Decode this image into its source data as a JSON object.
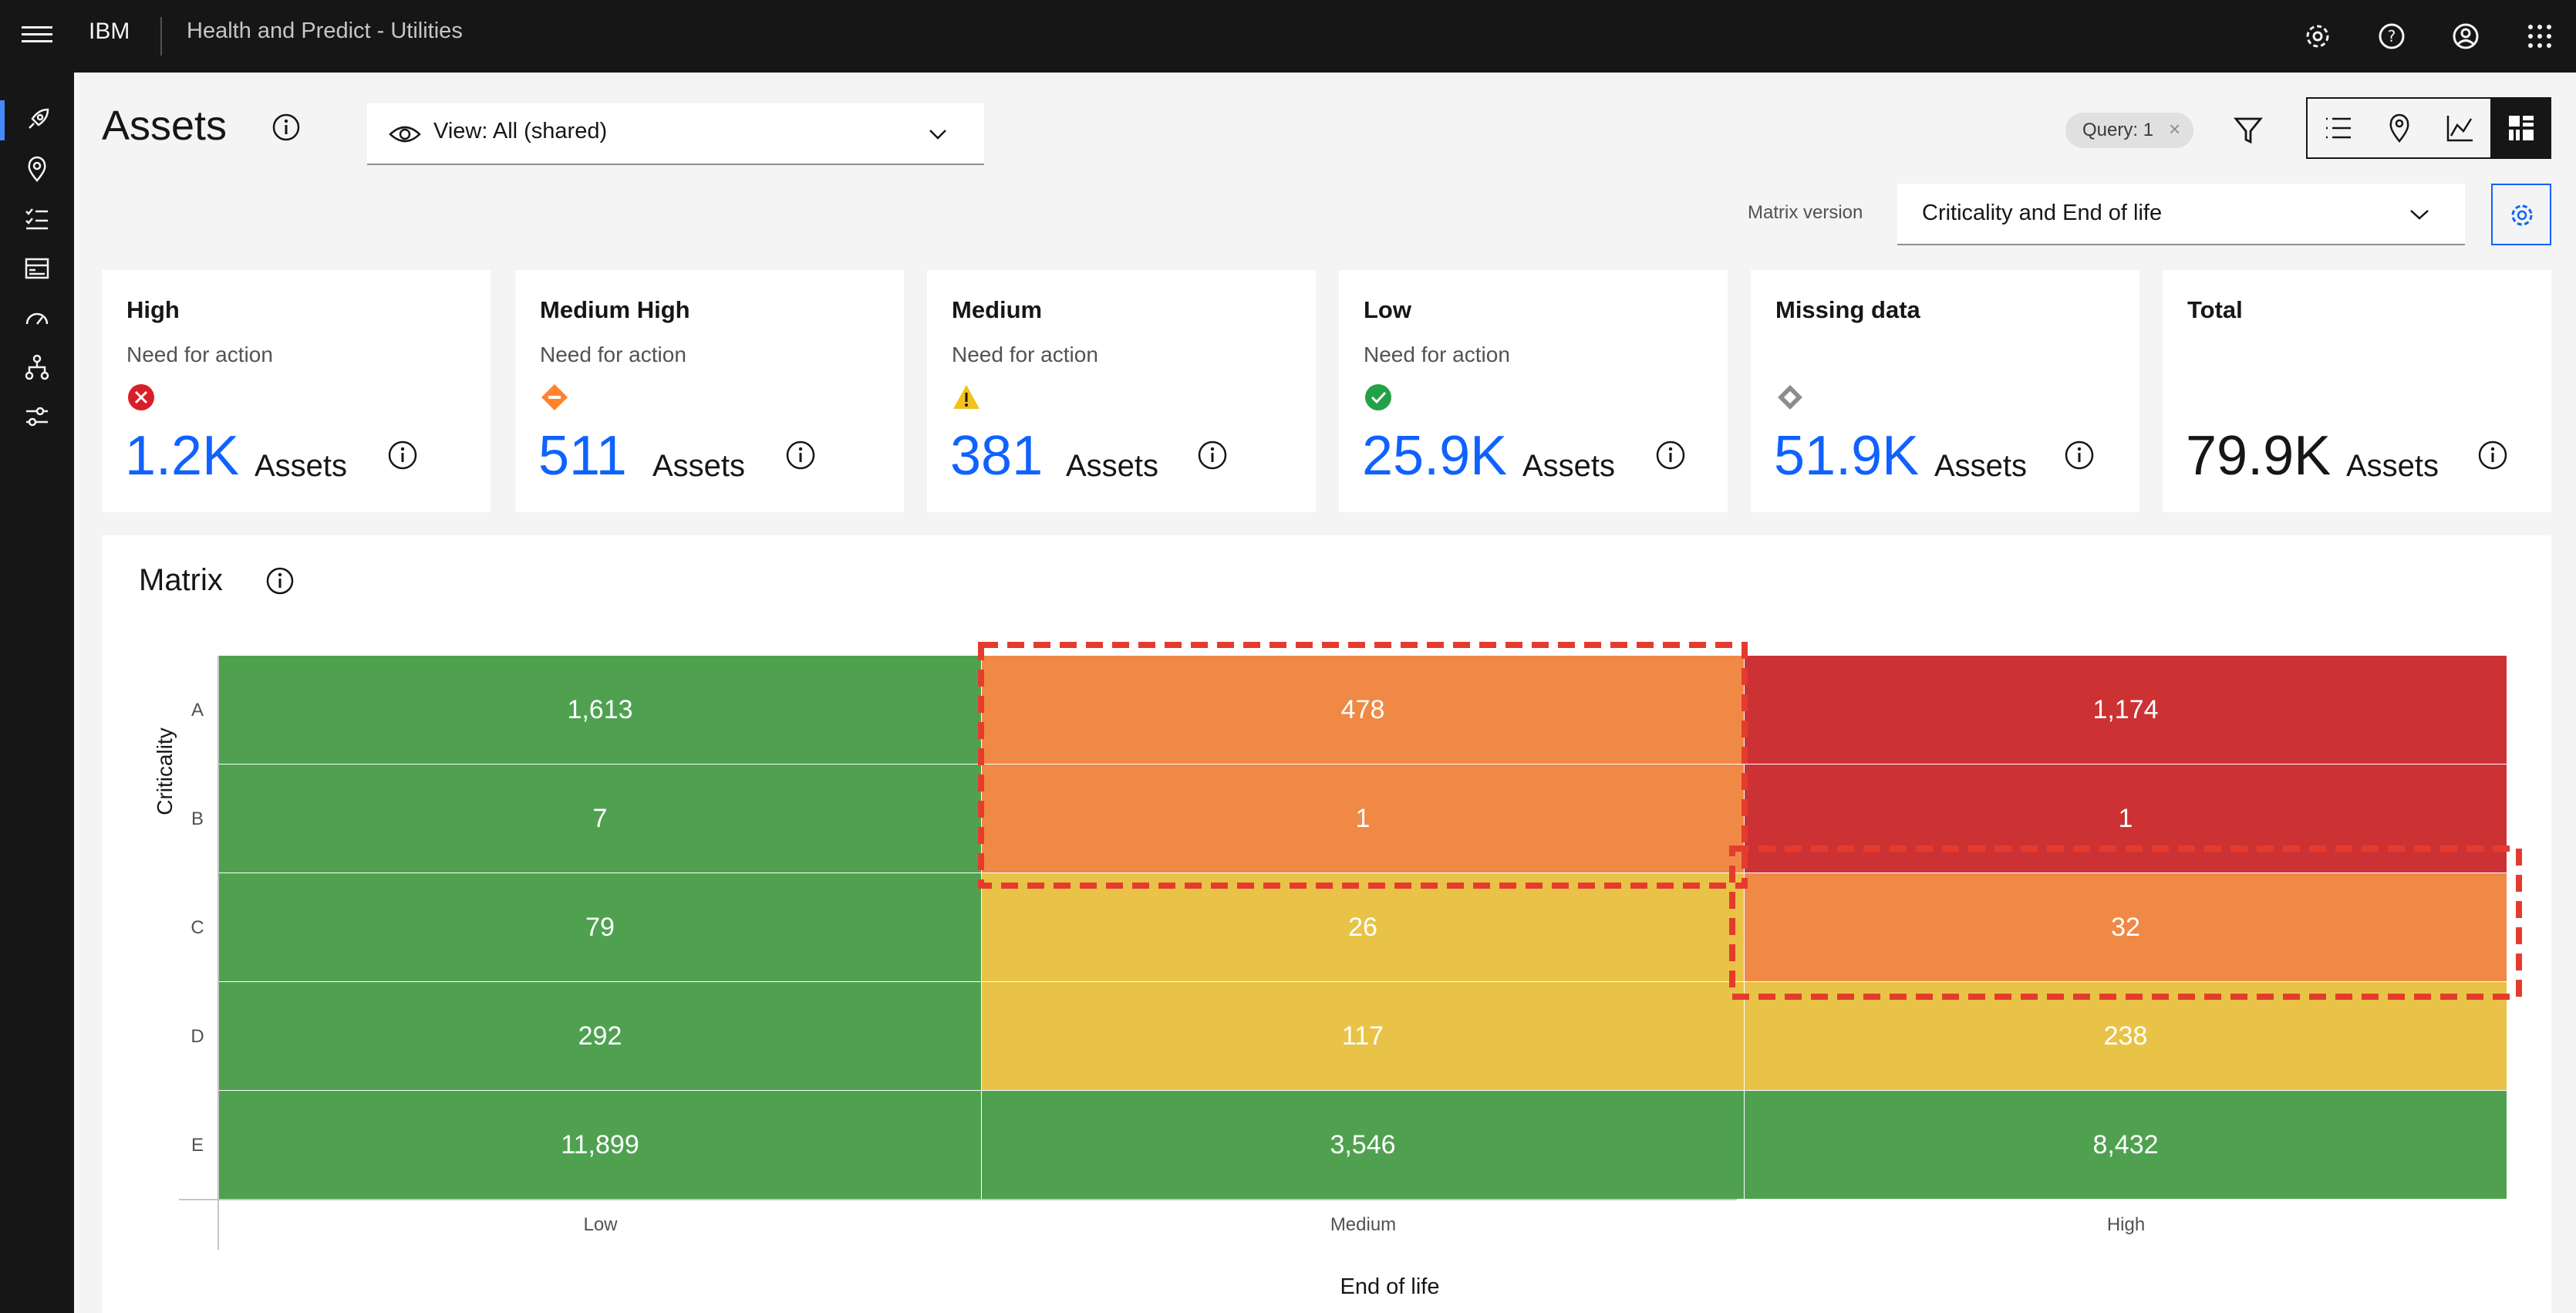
{
  "topbar": {
    "brand": "IBM",
    "title": "Health and Predict - Utilities"
  },
  "header": {
    "page_title": "Assets",
    "view_select": "View: All (shared)",
    "query_tag": "Query: 1",
    "matrix_version_label": "Matrix version",
    "matrix_version_value": "Criticality and End of life"
  },
  "cards": [
    {
      "title": "High",
      "subtitle": "Need for action",
      "value": "1.2K",
      "unit": "Assets",
      "icon": "error-icon",
      "color": "#da1e28"
    },
    {
      "title": "Medium High",
      "subtitle": "Need for action",
      "value": "511",
      "unit": "Assets",
      "icon": "medium-high-icon",
      "color": "#ff832b"
    },
    {
      "title": "Medium",
      "subtitle": "Need for action",
      "value": "381",
      "unit": "Assets",
      "icon": "warning-icon",
      "color": "#f1c21b"
    },
    {
      "title": "Low",
      "subtitle": "Need for action",
      "value": "25.9K",
      "unit": "Assets",
      "icon": "check-icon",
      "color": "#24a148"
    },
    {
      "title": "Missing data",
      "subtitle": "",
      "value": "51.9K",
      "unit": "Assets",
      "icon": "missing-data-icon",
      "color": "#8d8d8d"
    },
    {
      "title": "Total",
      "subtitle": "",
      "value": "79.9K",
      "unit": "Assets"
    }
  ],
  "matrix": {
    "title": "Matrix",
    "y_axis_label": "Criticality",
    "x_axis_label": "End of life"
  },
  "chart_data": {
    "type": "heatmap",
    "title": "Matrix",
    "xlabel": "End of life",
    "ylabel": "Criticality",
    "columns": [
      "Low",
      "Medium",
      "High"
    ],
    "rows": [
      "A",
      "B",
      "C",
      "D",
      "E"
    ],
    "values": [
      [
        "1,613",
        "478",
        "1,174"
      ],
      [
        "7",
        "1",
        "1"
      ],
      [
        "79",
        "26",
        "32"
      ],
      [
        "292",
        "117",
        "238"
      ],
      [
        "11,899",
        "3,546",
        "8,432"
      ]
    ],
    "cell_levels": [
      [
        "low",
        "medium-high",
        "high"
      ],
      [
        "low",
        "medium-high",
        "high"
      ],
      [
        "low",
        "medium",
        "medium-high"
      ],
      [
        "low",
        "medium",
        "medium"
      ],
      [
        "low",
        "low",
        "low"
      ]
    ],
    "level_colors": {
      "low": "#4fa150",
      "medium": "#e8c347",
      "medium-high": "#ef8945",
      "high": "#cc3233"
    },
    "highlight_color": "#e53b2e"
  }
}
